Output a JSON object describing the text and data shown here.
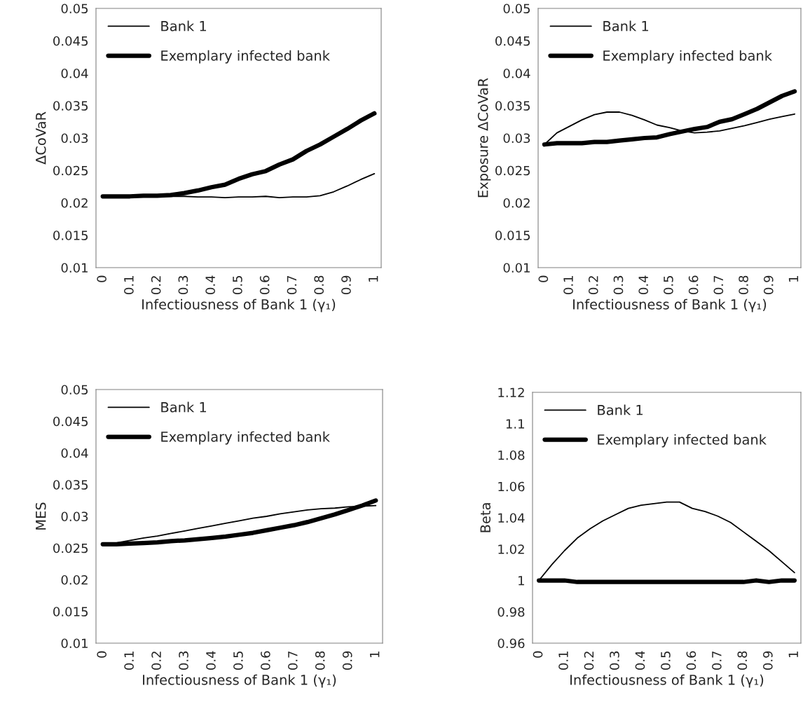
{
  "chart_data": [
    {
      "type": "line",
      "ylabel": "ΔCoVaR",
      "xlabel": "Infectiousness of Bank 1 (γ₁)",
      "legend": "top left",
      "grid": false,
      "marker": "none",
      "line_style": "solid",
      "x": [
        0,
        0.05,
        0.1,
        0.15,
        0.2,
        0.25,
        0.3,
        0.35,
        0.4,
        0.45,
        0.5,
        0.55,
        0.6,
        0.65,
        0.7,
        0.75,
        0.8,
        0.85,
        0.9,
        0.95,
        1
      ],
      "xlim": [
        -0.025,
        1.025
      ],
      "xticks": [
        0,
        0.1,
        0.2,
        0.3,
        0.4,
        0.5,
        0.6,
        0.7,
        0.8,
        0.9,
        1
      ],
      "ylim": [
        0.01,
        0.05
      ],
      "yticks": [
        0.01,
        0.015,
        0.02,
        0.025,
        0.03,
        0.035,
        0.04,
        0.045,
        0.05
      ],
      "series": [
        {
          "name": "Bank 1",
          "color": "#000000",
          "values": [
            0.021,
            0.021,
            0.021,
            0.021,
            0.021,
            0.021,
            0.021,
            0.0209,
            0.0209,
            0.0208,
            0.0209,
            0.0209,
            0.021,
            0.0208,
            0.0209,
            0.0209,
            0.0211,
            0.0217,
            0.0226,
            0.0236,
            0.0245
          ]
        },
        {
          "name": "Exemplary infected bank",
          "color": "#000000",
          "values": [
            0.021,
            0.021,
            0.021,
            0.0211,
            0.0211,
            0.0212,
            0.0215,
            0.0219,
            0.0224,
            0.0228,
            0.0237,
            0.0244,
            0.0249,
            0.0259,
            0.0267,
            0.028,
            0.029,
            0.0302,
            0.0314,
            0.0327,
            0.0338
          ]
        }
      ]
    },
    {
      "type": "line",
      "ylabel": "Exposure ΔCoVaR",
      "xlabel": "Infectiousness of Bank 1 (γ₁)",
      "legend": "top left",
      "grid": false,
      "marker": "none",
      "line_style": "solid",
      "x": [
        0,
        0.05,
        0.1,
        0.15,
        0.2,
        0.25,
        0.3,
        0.35,
        0.4,
        0.45,
        0.5,
        0.55,
        0.6,
        0.65,
        0.7,
        0.75,
        0.8,
        0.85,
        0.9,
        0.95,
        1
      ],
      "xlim": [
        -0.025,
        1.025
      ],
      "xticks": [
        0,
        0.1,
        0.2,
        0.3,
        0.4,
        0.5,
        0.6,
        0.7,
        0.8,
        0.9,
        1
      ],
      "ylim": [
        0.01,
        0.05
      ],
      "yticks": [
        0.01,
        0.015,
        0.02,
        0.025,
        0.03,
        0.035,
        0.04,
        0.045,
        0.05
      ],
      "series": [
        {
          "name": "Bank 1",
          "color": "#000000",
          "values": [
            0.029,
            0.0308,
            0.0318,
            0.0328,
            0.0336,
            0.034,
            0.034,
            0.0335,
            0.0328,
            0.032,
            0.0316,
            0.0311,
            0.0308,
            0.0309,
            0.0311,
            0.0315,
            0.0319,
            0.0324,
            0.0329,
            0.0333,
            0.0337
          ]
        },
        {
          "name": "Exemplary infected bank",
          "color": "#000000",
          "values": [
            0.029,
            0.0292,
            0.0292,
            0.0292,
            0.0294,
            0.0294,
            0.0296,
            0.0298,
            0.03,
            0.0301,
            0.0306,
            0.031,
            0.0314,
            0.0317,
            0.0325,
            0.0329,
            0.0337,
            0.0345,
            0.0355,
            0.0365,
            0.0372
          ]
        }
      ]
    },
    {
      "type": "line",
      "ylabel": "MES",
      "xlabel": "Infectiousness of Bank 1 (γ₁)",
      "legend": "top left",
      "grid": false,
      "marker": "none",
      "line_style": "solid",
      "x": [
        0,
        0.05,
        0.1,
        0.15,
        0.2,
        0.25,
        0.3,
        0.35,
        0.4,
        0.45,
        0.5,
        0.55,
        0.6,
        0.65,
        0.7,
        0.75,
        0.8,
        0.85,
        0.9,
        0.95,
        1
      ],
      "xlim": [
        -0.025,
        1.025
      ],
      "xticks": [
        0,
        0.1,
        0.2,
        0.3,
        0.4,
        0.5,
        0.6,
        0.7,
        0.8,
        0.9,
        1
      ],
      "ylim": [
        0.01,
        0.05
      ],
      "yticks": [
        0.01,
        0.015,
        0.02,
        0.025,
        0.03,
        0.035,
        0.04,
        0.045,
        0.05
      ],
      "series": [
        {
          "name": "Bank 1",
          "color": "#000000",
          "values": [
            0.0256,
            0.0258,
            0.0262,
            0.0266,
            0.0269,
            0.0273,
            0.0277,
            0.0281,
            0.0285,
            0.0289,
            0.0293,
            0.0297,
            0.03,
            0.0304,
            0.0307,
            0.031,
            0.0312,
            0.0313,
            0.0315,
            0.0316,
            0.0317
          ]
        },
        {
          "name": "Exemplary infected bank",
          "color": "#000000",
          "values": [
            0.0256,
            0.0256,
            0.0257,
            0.0258,
            0.0259,
            0.0261,
            0.0262,
            0.0264,
            0.0266,
            0.0268,
            0.0271,
            0.0274,
            0.0278,
            0.0282,
            0.0286,
            0.0291,
            0.0297,
            0.0303,
            0.031,
            0.0317,
            0.0325
          ]
        }
      ]
    },
    {
      "type": "line",
      "ylabel": "Beta",
      "xlabel": "Infectiousness of Bank 1 (γ₁)",
      "legend": "top left",
      "grid": false,
      "marker": "none",
      "line_style": "solid",
      "x": [
        0,
        0.05,
        0.1,
        0.15,
        0.2,
        0.25,
        0.3,
        0.35,
        0.4,
        0.45,
        0.5,
        0.55,
        0.6,
        0.65,
        0.7,
        0.75,
        0.8,
        0.85,
        0.9,
        0.95,
        1
      ],
      "xlim": [
        -0.025,
        1.025
      ],
      "xticks": [
        0,
        0.1,
        0.2,
        0.3,
        0.4,
        0.5,
        0.6,
        0.7,
        0.8,
        0.9,
        1
      ],
      "ylim": [
        0.96,
        1.12
      ],
      "yticks": [
        0.96,
        0.98,
        1,
        1.02,
        1.04,
        1.06,
        1.08,
        1.1,
        1.12
      ],
      "series": [
        {
          "name": "Bank 1",
          "color": "#000000",
          "values": [
            1.0,
            1.01,
            1.019,
            1.027,
            1.033,
            1.038,
            1.042,
            1.046,
            1.048,
            1.049,
            1.05,
            1.05,
            1.046,
            1.044,
            1.041,
            1.037,
            1.031,
            1.025,
            1.019,
            1.012,
            1.005
          ]
        },
        {
          "name": "Exemplary infected bank",
          "color": "#000000",
          "values": [
            1.0,
            1.0,
            1.0,
            0.999,
            0.999,
            0.999,
            0.999,
            0.999,
            0.999,
            0.999,
            0.999,
            0.999,
            0.999,
            0.999,
            0.999,
            0.999,
            0.999,
            1.0,
            0.999,
            1.0,
            1.0
          ]
        }
      ]
    }
  ]
}
